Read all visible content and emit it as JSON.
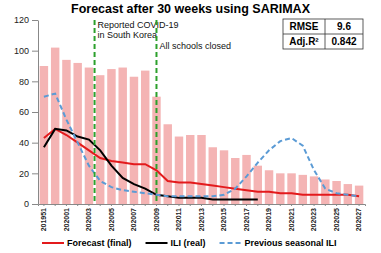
{
  "chart_data": {
    "type": "bar",
    "title": "Forecast after 30 weeks using SARIMAX",
    "categories": [
      "201951",
      null,
      "202001",
      null,
      "202003",
      null,
      "202005",
      null,
      "202007",
      null,
      "202009",
      null,
      "202011",
      null,
      "202013",
      null,
      "202015",
      null,
      "202017",
      null,
      "202019",
      null,
      "202021",
      null,
      "202023",
      null,
      "202025",
      null,
      "202027"
    ],
    "series": [
      {
        "type": "bar",
        "color": "#f4b4b4",
        "values": [
          90,
          102,
          94,
          92,
          89,
          84,
          88,
          89,
          83,
          87,
          70,
          52,
          44,
          45,
          45,
          37,
          35,
          30,
          32,
          25,
          22,
          20,
          20,
          19,
          18,
          16,
          15,
          13,
          12
        ]
      },
      {
        "name": "Forecast (final)",
        "type": "line",
        "color": "#e31a1c",
        "line_style": "solid",
        "values": [
          43,
          49,
          45,
          40,
          35,
          30,
          28,
          27,
          26,
          26,
          22,
          15,
          14,
          14,
          13,
          12,
          11,
          10,
          9,
          8,
          8,
          7,
          7,
          6,
          6,
          6,
          6,
          6,
          5
        ]
      },
      {
        "name": "ILI (real)",
        "type": "line",
        "color": "#000000",
        "line_style": "solid",
        "values": [
          37,
          49,
          48,
          44,
          42,
          35,
          25,
          17,
          13,
          10,
          6,
          5,
          4,
          4,
          4,
          3,
          3,
          3,
          3,
          3,
          null,
          null,
          null,
          null,
          null,
          null,
          null,
          null,
          null
        ]
      },
      {
        "name": "Previous seasonal ILI",
        "type": "line",
        "color": "#5b9bd5",
        "line_style": "dashed",
        "values": [
          70,
          72,
          55,
          40,
          25,
          15,
          11,
          9,
          8,
          7,
          6,
          5,
          5,
          5,
          5,
          5,
          6,
          10,
          18,
          27,
          35,
          41,
          43,
          38,
          22,
          10,
          7,
          6,
          5
        ]
      }
    ],
    "ylim": [
      0,
      120
    ],
    "yticks": [
      0,
      20,
      40,
      60,
      80,
      100,
      120
    ],
    "legend": "bottom",
    "annotations": [
      {
        "text": [
          "Reported COVID-19",
          "in South Korea"
        ],
        "position": 4.5
      },
      {
        "text": [
          "All schools closed"
        ],
        "position": 10
      }
    ],
    "table": {
      "rows": [
        [
          "RMSE",
          "9.6"
        ],
        [
          "Adj.R²",
          "0.842"
        ]
      ]
    }
  }
}
